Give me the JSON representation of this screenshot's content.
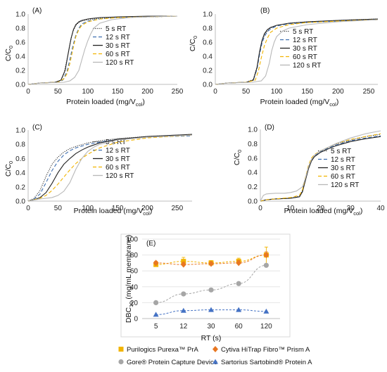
{
  "chart_data": [
    {
      "type": "line",
      "panel_label": "(A)",
      "xlabel_main": "Protein loaded (mg/V",
      "xlabel_sub": "col",
      "xlabel_close": ")",
      "ylabel_main": "C/C",
      "ylabel_sub": "0",
      "xlim": [
        0,
        250
      ],
      "ylim": [
        0,
        1.0
      ],
      "xticks": [
        "0",
        "50",
        "100",
        "150",
        "200",
        "250"
      ],
      "yticks": [
        "0.0",
        "0.2",
        "0.4",
        "0.6",
        "0.8",
        "1.0"
      ],
      "legend_position": "right",
      "series": [
        {
          "name": "5 s RT",
          "style": "dot",
          "color": "#333333",
          "x": [
            0,
            20,
            45,
            55,
            60,
            65,
            70,
            75,
            80,
            85,
            90,
            100,
            120,
            150,
            200,
            250
          ],
          "y": [
            0,
            0.02,
            0.03,
            0.06,
            0.15,
            0.35,
            0.58,
            0.75,
            0.84,
            0.88,
            0.9,
            0.92,
            0.94,
            0.95,
            0.96,
            0.97
          ]
        },
        {
          "name": "12 s RT",
          "style": "dash",
          "color": "#3f6fb0",
          "x": [
            0,
            20,
            50,
            58,
            65,
            70,
            75,
            80,
            85,
            90,
            100,
            120,
            150,
            200,
            250
          ],
          "y": [
            0,
            0.02,
            0.03,
            0.06,
            0.18,
            0.36,
            0.55,
            0.7,
            0.8,
            0.86,
            0.9,
            0.93,
            0.95,
            0.96,
            0.97
          ]
        },
        {
          "name": "30 s RT",
          "style": "solid",
          "color": "#222222",
          "x": [
            0,
            20,
            45,
            55,
            62,
            68,
            72,
            76,
            80,
            85,
            90,
            100,
            120,
            150,
            200,
            250
          ],
          "y": [
            0,
            0.02,
            0.03,
            0.06,
            0.2,
            0.48,
            0.66,
            0.78,
            0.85,
            0.89,
            0.91,
            0.93,
            0.95,
            0.96,
            0.97,
            0.97
          ]
        },
        {
          "name": "60 s RT",
          "style": "dash",
          "color": "#f2b400",
          "x": [
            0,
            20,
            50,
            60,
            65,
            70,
            75,
            80,
            85,
            90,
            100,
            110,
            120,
            150,
            200,
            250
          ],
          "y": [
            0,
            0.02,
            0.03,
            0.08,
            0.15,
            0.3,
            0.5,
            0.68,
            0.78,
            0.84,
            0.89,
            0.91,
            0.93,
            0.95,
            0.96,
            0.97
          ]
        },
        {
          "name": "120 s RT",
          "style": "solid",
          "color": "#b8b8b8",
          "x": [
            0,
            20,
            60,
            70,
            78,
            85,
            90,
            95,
            100,
            105,
            110,
            120,
            140,
            170,
            200,
            250
          ],
          "y": [
            0,
            0.02,
            0.03,
            0.05,
            0.1,
            0.2,
            0.35,
            0.5,
            0.62,
            0.72,
            0.8,
            0.87,
            0.92,
            0.95,
            0.96,
            0.97
          ]
        }
      ]
    },
    {
      "type": "line",
      "panel_label": "(B)",
      "xlabel_main": "Protein loaded (mg/V",
      "xlabel_sub": "col",
      "xlabel_close": ")",
      "ylabel_main": "C/C",
      "ylabel_sub": "0",
      "xlim": [
        0,
        265
      ],
      "ylim": [
        0,
        1.0
      ],
      "xticks": [
        "0",
        "50",
        "100",
        "150",
        "200",
        "250"
      ],
      "yticks": [
        "0.0",
        "0.2",
        "0.4",
        "0.6",
        "0.8",
        "1.0"
      ],
      "legend_position": "right",
      "series": [
        {
          "name": "5 s RT",
          "style": "dot",
          "color": "#333333",
          "x": [
            0,
            20,
            50,
            62,
            68,
            72,
            76,
            80,
            85,
            90,
            100,
            120,
            150,
            200,
            265
          ],
          "y": [
            0,
            0.02,
            0.03,
            0.07,
            0.25,
            0.45,
            0.6,
            0.7,
            0.76,
            0.8,
            0.84,
            0.87,
            0.89,
            0.91,
            0.93
          ]
        },
        {
          "name": "12 s RT",
          "style": "dash",
          "color": "#3f6fb0",
          "x": [
            0,
            20,
            50,
            62,
            68,
            72,
            76,
            80,
            85,
            90,
            100,
            120,
            150,
            200,
            265
          ],
          "y": [
            0,
            0.02,
            0.03,
            0.06,
            0.22,
            0.42,
            0.58,
            0.68,
            0.75,
            0.79,
            0.83,
            0.86,
            0.88,
            0.9,
            0.92
          ]
        },
        {
          "name": "30 s RT",
          "style": "solid",
          "color": "#222222",
          "x": [
            0,
            20,
            50,
            62,
            68,
            72,
            76,
            80,
            85,
            90,
            100,
            120,
            150,
            200,
            265
          ],
          "y": [
            0,
            0.02,
            0.03,
            0.06,
            0.24,
            0.46,
            0.62,
            0.72,
            0.78,
            0.81,
            0.84,
            0.87,
            0.89,
            0.91,
            0.93
          ]
        },
        {
          "name": "60 s RT",
          "style": "dash",
          "color": "#f2b400",
          "x": [
            0,
            20,
            50,
            65,
            70,
            75,
            80,
            85,
            90,
            100,
            120,
            150,
            200,
            265
          ],
          "y": [
            0,
            0.02,
            0.03,
            0.06,
            0.18,
            0.38,
            0.55,
            0.66,
            0.74,
            0.8,
            0.85,
            0.88,
            0.9,
            0.92
          ]
        },
        {
          "name": "120 s RT",
          "style": "solid",
          "color": "#b8b8b8",
          "x": [
            0,
            20,
            60,
            75,
            82,
            88,
            92,
            96,
            100,
            110,
            120,
            150,
            200,
            265
          ],
          "y": [
            0,
            0.02,
            0.03,
            0.05,
            0.12,
            0.3,
            0.48,
            0.6,
            0.68,
            0.76,
            0.8,
            0.85,
            0.89,
            0.92
          ]
        }
      ]
    },
    {
      "type": "line",
      "panel_label": "(C)",
      "xlabel_main": "Protein loaded (mg/V",
      "xlabel_sub": "col",
      "xlabel_close": ")",
      "ylabel_main": "C/C",
      "ylabel_sub": "0",
      "xlim": [
        0,
        275
      ],
      "ylim": [
        0,
        1.0
      ],
      "xticks": [
        "0",
        "50",
        "100",
        "150",
        "200",
        "250"
      ],
      "yticks": [
        "0.0",
        "0.2",
        "0.4",
        "0.6",
        "0.8",
        "1.0"
      ],
      "legend_position": "right",
      "series": [
        {
          "name": "5 s RT",
          "style": "dot",
          "color": "#333333",
          "x": [
            0,
            10,
            20,
            30,
            40,
            50,
            60,
            70,
            80,
            100,
            120,
            150,
            200,
            275
          ],
          "y": [
            0,
            0.04,
            0.15,
            0.35,
            0.52,
            0.62,
            0.69,
            0.74,
            0.77,
            0.82,
            0.85,
            0.88,
            0.91,
            0.94
          ]
        },
        {
          "name": "12 s RT",
          "style": "dash",
          "color": "#3f6fb0",
          "x": [
            0,
            10,
            20,
            30,
            40,
            50,
            60,
            70,
            80,
            100,
            120,
            150,
            200,
            275
          ],
          "y": [
            0,
            0.03,
            0.1,
            0.26,
            0.43,
            0.56,
            0.65,
            0.71,
            0.75,
            0.8,
            0.83,
            0.87,
            0.9,
            0.92
          ]
        },
        {
          "name": "30 s RT",
          "style": "solid",
          "color": "#222222",
          "x": [
            0,
            10,
            20,
            30,
            40,
            50,
            60,
            70,
            80,
            90,
            100,
            120,
            150,
            200,
            275
          ],
          "y": [
            0,
            0.02,
            0.05,
            0.12,
            0.25,
            0.4,
            0.52,
            0.6,
            0.67,
            0.72,
            0.76,
            0.82,
            0.87,
            0.91,
            0.94
          ]
        },
        {
          "name": "60 s RT",
          "style": "dash",
          "color": "#f2b400",
          "x": [
            0,
            10,
            20,
            30,
            40,
            50,
            60,
            70,
            80,
            90,
            100,
            120,
            150,
            200,
            275
          ],
          "y": [
            0,
            0.02,
            0.04,
            0.08,
            0.15,
            0.24,
            0.34,
            0.44,
            0.53,
            0.6,
            0.66,
            0.75,
            0.83,
            0.89,
            0.93
          ]
        },
        {
          "name": "120 s RT",
          "style": "solid",
          "color": "#b8b8b8",
          "x": [
            0,
            20,
            40,
            50,
            60,
            70,
            80,
            90,
            100,
            110,
            120,
            150,
            200,
            275
          ],
          "y": [
            0,
            0.03,
            0.05,
            0.08,
            0.14,
            0.26,
            0.45,
            0.6,
            0.7,
            0.76,
            0.8,
            0.86,
            0.9,
            0.93
          ]
        }
      ]
    },
    {
      "type": "line",
      "panel_label": "(D)",
      "xlabel_main": "Protein loaded (mg/V",
      "xlabel_sub": "col",
      "xlabel_close": ")",
      "ylabel_main": "C/C",
      "ylabel_sub": "0",
      "xlim": [
        0,
        40
      ],
      "ylim": [
        0,
        1.0
      ],
      "xticks": [
        "0",
        "10",
        "20",
        "30",
        "40"
      ],
      "yticks": [
        "0.0",
        "0.2",
        "0.4",
        "0.6",
        "0.8",
        "1.0"
      ],
      "legend_position": "right",
      "series": [
        {
          "name": "5 s RT",
          "style": "dot",
          "color": "#333333",
          "x": [
            0,
            2,
            5,
            10,
            13,
            14,
            15,
            16,
            17,
            18,
            20,
            22,
            25,
            30,
            35,
            40
          ],
          "y": [
            0,
            0.02,
            0.03,
            0.04,
            0.07,
            0.15,
            0.32,
            0.48,
            0.58,
            0.64,
            0.7,
            0.74,
            0.79,
            0.85,
            0.9,
            0.93
          ]
        },
        {
          "name": "12 s RT",
          "style": "dash",
          "color": "#3f6fb0",
          "x": [
            0,
            2,
            5,
            10,
            13,
            14,
            15,
            16,
            17,
            18,
            20,
            22,
            25,
            30,
            35,
            40
          ],
          "y": [
            0,
            0.02,
            0.03,
            0.04,
            0.06,
            0.14,
            0.3,
            0.46,
            0.57,
            0.63,
            0.69,
            0.73,
            0.78,
            0.84,
            0.88,
            0.91
          ]
        },
        {
          "name": "30 s RT",
          "style": "solid",
          "color": "#222222",
          "x": [
            0,
            2,
            5,
            10,
            13,
            14,
            15,
            16,
            17,
            18,
            20,
            22,
            25,
            30,
            35,
            40
          ],
          "y": [
            0,
            0.02,
            0.03,
            0.04,
            0.06,
            0.13,
            0.29,
            0.45,
            0.56,
            0.62,
            0.68,
            0.72,
            0.77,
            0.83,
            0.87,
            0.9
          ]
        },
        {
          "name": "60 s RT",
          "style": "dash",
          "color": "#f2b400",
          "x": [
            0,
            2,
            5,
            10,
            13,
            14,
            15,
            16,
            17,
            18,
            20,
            22,
            25,
            30,
            35,
            40
          ],
          "y": [
            0,
            0.02,
            0.03,
            0.05,
            0.08,
            0.16,
            0.33,
            0.5,
            0.6,
            0.65,
            0.7,
            0.74,
            0.8,
            0.86,
            0.9,
            0.94
          ]
        },
        {
          "name": "120 s RT",
          "style": "solid",
          "color": "#b8b8b8",
          "x": [
            0,
            1,
            2,
            5,
            8,
            10,
            12,
            14,
            15,
            16,
            17,
            18,
            20,
            25,
            30,
            35,
            40
          ],
          "y": [
            0,
            0.08,
            0.1,
            0.11,
            0.11,
            0.12,
            0.14,
            0.2,
            0.32,
            0.48,
            0.58,
            0.64,
            0.7,
            0.8,
            0.88,
            0.94,
            0.98
          ]
        }
      ]
    },
    {
      "type": "scatter",
      "panel_label": "(E)",
      "xlabel": "RT (s)",
      "ylabel_main": "DBC",
      "ylabel_sub": "10",
      "ylabel_rest": " (mg/mL membrane)",
      "categories": [
        "5",
        "12",
        "30",
        "60",
        "120"
      ],
      "ylim": [
        0,
        100
      ],
      "yticks": [
        "0",
        "20",
        "40",
        "60",
        "80",
        "100"
      ],
      "legend_position": "bottom",
      "series": [
        {
          "name": "Purilogics Purexa™ PrA",
          "marker": "square",
          "color": "#f2b400",
          "values": [
            68,
            72,
            70,
            72,
            80
          ],
          "errors": [
            2,
            5,
            3,
            4,
            10
          ]
        },
        {
          "name": "Cytiva HiTrap Fibro™ Prism A",
          "marker": "diamond",
          "color": "#e87722",
          "values": [
            70,
            68,
            69,
            70,
            80
          ],
          "errors": [
            2,
            3,
            2,
            3,
            4
          ]
        },
        {
          "name": "Gore® Protein Capture Device",
          "marker": "circle",
          "color": "#a6a6a6",
          "values": [
            20,
            31,
            36,
            44,
            67
          ],
          "errors": [
            1,
            1,
            1,
            1,
            2
          ]
        },
        {
          "name": "Sartorius Sartobind® Protein A",
          "marker": "triangle",
          "color": "#4472c4",
          "values": [
            5,
            10,
            11,
            11,
            9
          ],
          "errors": [
            0.5,
            0.5,
            0.5,
            0.5,
            0.5
          ]
        }
      ]
    }
  ]
}
